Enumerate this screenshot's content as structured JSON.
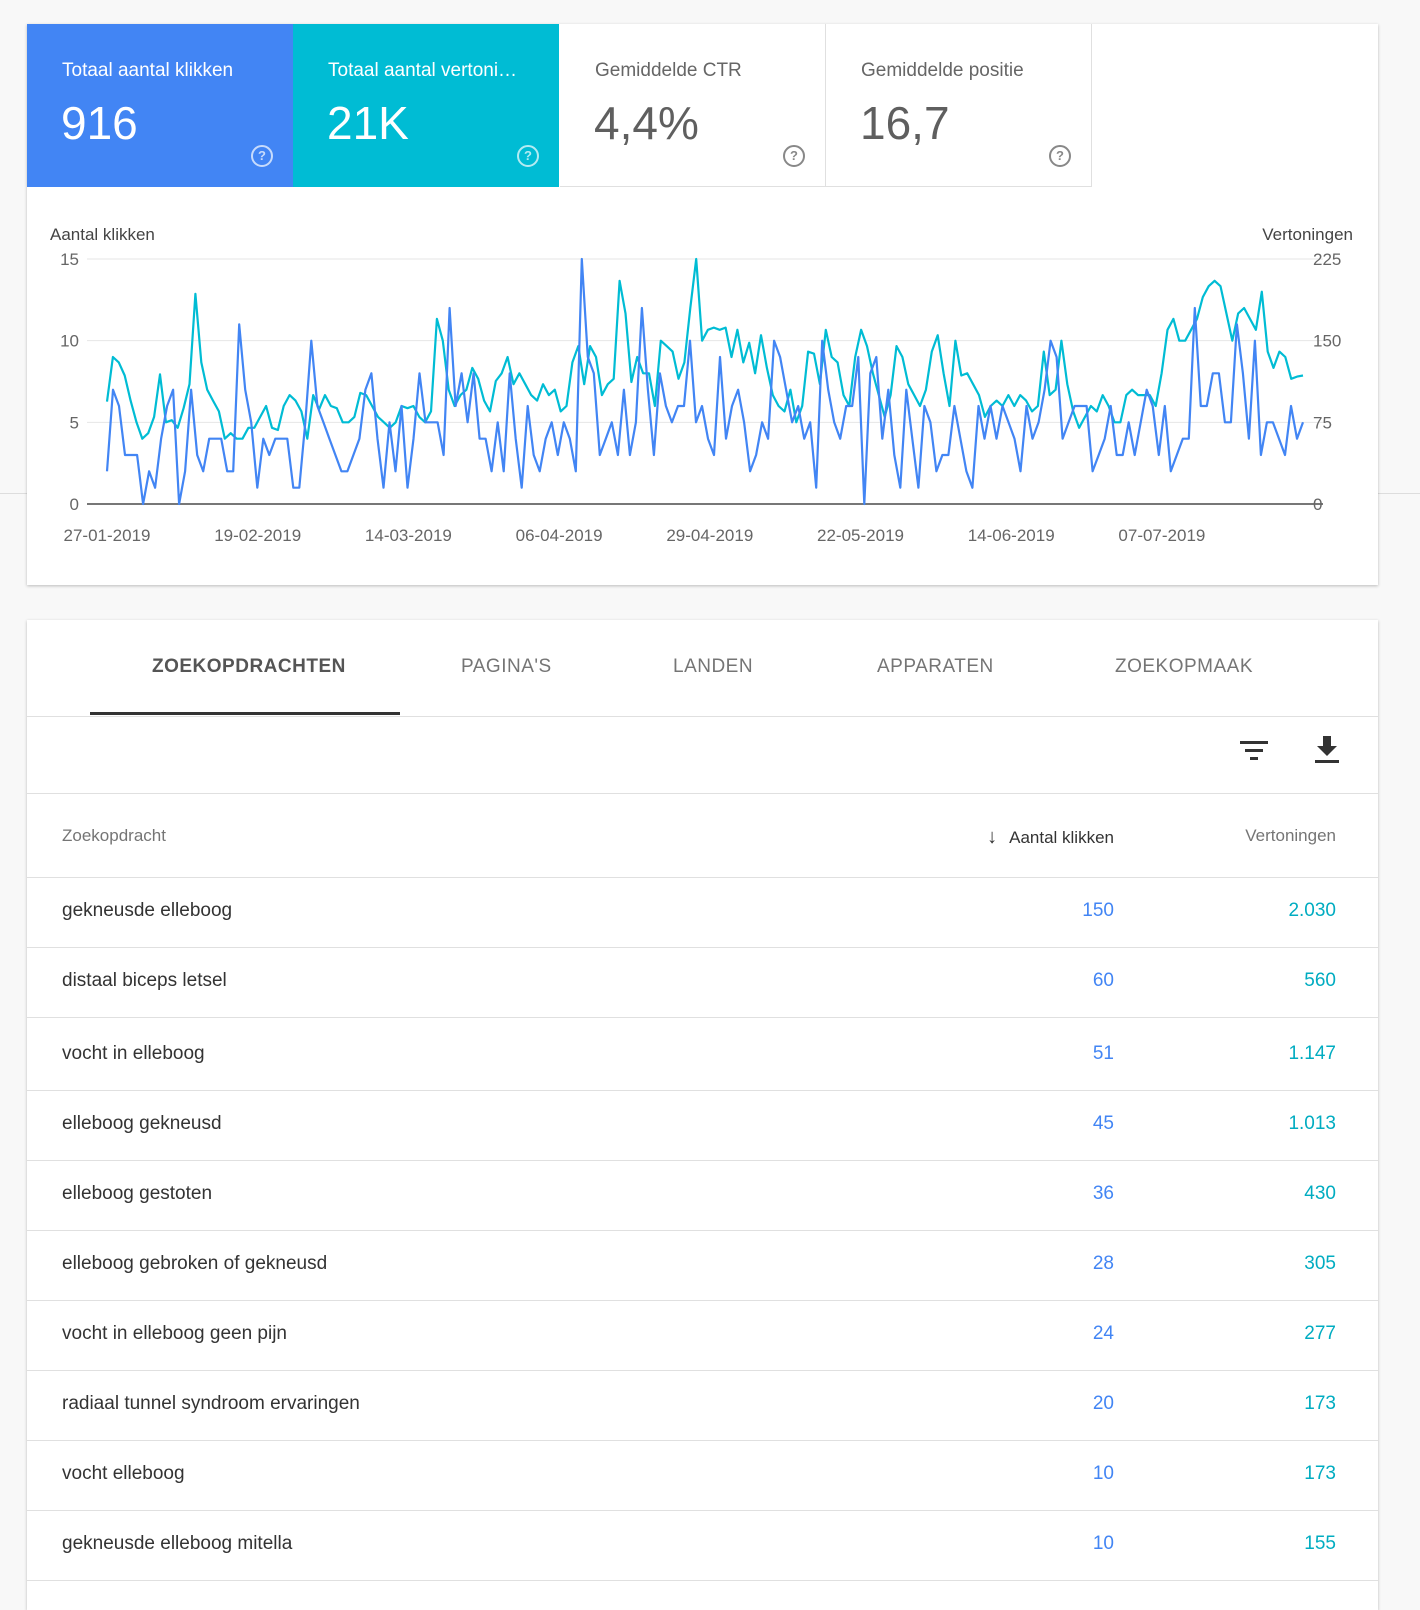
{
  "metrics": [
    {
      "label": "Totaal aantal klikken",
      "value": "916"
    },
    {
      "label": "Totaal aantal vertoni…",
      "value": "21K"
    },
    {
      "label": "Gemiddelde CTR",
      "value": "4,4%"
    },
    {
      "label": "Gemiddelde positie",
      "value": "16,7"
    }
  ],
  "help_glyph": "?",
  "chart_data": {
    "type": "line",
    "left_axis_title": "Aantal klikken",
    "right_axis_title": "Vertoningen",
    "left_ticks": [
      "0",
      "5",
      "10",
      "15"
    ],
    "right_ticks": [
      "0",
      "75",
      "150",
      "225"
    ],
    "left_ylim": [
      0,
      15
    ],
    "right_ylim": [
      0,
      225
    ],
    "x_tick_labels": [
      "27-01-2019",
      "19-02-2019",
      "14-03-2019",
      "06-04-2019",
      "29-04-2019",
      "22-05-2019",
      "14-06-2019",
      "07-07-2019"
    ],
    "colors": {
      "clicks": "#4285f4",
      "impressions": "#00bcd4"
    },
    "series": [
      {
        "axis": "left",
        "values": [
          2,
          7,
          6,
          3,
          3,
          3,
          0,
          2,
          1,
          4,
          6,
          7,
          0,
          2,
          7,
          3,
          2,
          4,
          4,
          4,
          2,
          2,
          11,
          7,
          5,
          1,
          4,
          3,
          4,
          4,
          4,
          1,
          1,
          5,
          10,
          6,
          5,
          4,
          3,
          2,
          2,
          3,
          4,
          7,
          8,
          4,
          1,
          5,
          2,
          6,
          1,
          4,
          8,
          5,
          5,
          5,
          3,
          12,
          6,
          8,
          5,
          8,
          4,
          4,
          2,
          5,
          2,
          8,
          4,
          1,
          6,
          3,
          2,
          4,
          5,
          3,
          5,
          4,
          2,
          15,
          9,
          8,
          3,
          4,
          5,
          3,
          7,
          3,
          5,
          12,
          7,
          3,
          8,
          6,
          5,
          6,
          6,
          10,
          5,
          6,
          4,
          3,
          9,
          4,
          6,
          7,
          5,
          2,
          3,
          5,
          4,
          10,
          9,
          7,
          5,
          6,
          4,
          5,
          1,
          10,
          7,
          5,
          4,
          6,
          6,
          9,
          0,
          8,
          9,
          4,
          7,
          3,
          1,
          7,
          4,
          1,
          6,
          5,
          2,
          3,
          3,
          6,
          4,
          2,
          1,
          6,
          4,
          6,
          4,
          6,
          5,
          4,
          2,
          6,
          4,
          5,
          7,
          10,
          9,
          4,
          5,
          6,
          6,
          6,
          2,
          3,
          4,
          6,
          3,
          3,
          5,
          3,
          5,
          7,
          6,
          3,
          6,
          2,
          3,
          4,
          4,
          12,
          6,
          6,
          8,
          8,
          5,
          5,
          11,
          8,
          4,
          10,
          3,
          5,
          5,
          4,
          3,
          6,
          4,
          5
        ],
        "note": ""
      },
      {
        "axis": "right",
        "values": [
          94,
          135,
          130,
          118,
          95,
          75,
          60,
          65,
          80,
          119,
          75,
          77,
          70,
          88,
          110,
          193,
          130,
          105,
          95,
          85,
          60,
          65,
          60,
          60,
          70,
          70,
          80,
          90,
          70,
          68,
          90,
          100,
          95,
          85,
          60,
          100,
          87,
          100,
          90,
          88,
          75,
          75,
          80,
          102,
          100,
          90,
          80,
          75,
          70,
          75,
          90,
          88,
          90,
          80,
          75,
          85,
          170,
          150,
          105,
          90,
          100,
          105,
          125,
          115,
          95,
          85,
          113,
          120,
          135,
          110,
          120,
          110,
          100,
          95,
          110,
          100,
          105,
          85,
          90,
          130,
          145,
          110,
          145,
          135,
          100,
          110,
          115,
          205,
          175,
          112,
          135,
          120,
          120,
          90,
          150,
          145,
          140,
          115,
          130,
          180,
          225,
          150,
          160,
          162,
          160,
          162,
          135,
          160,
          130,
          148,
          120,
          155,
          125,
          100,
          90,
          85,
          105,
          75,
          90,
          140,
          138,
          110,
          160,
          135,
          130,
          100,
          90,
          135,
          160,
          145,
          120,
          100,
          80,
          100,
          145,
          135,
          110,
          100,
          90,
          105,
          140,
          155,
          120,
          90,
          150,
          118,
          120,
          110,
          100,
          80,
          90,
          95,
          90,
          100,
          90,
          100,
          95,
          85,
          90,
          140,
          100,
          105,
          150,
          110,
          85,
          70,
          80,
          90,
          85,
          100,
          90,
          75,
          75,
          100,
          105,
          100,
          100,
          100,
          90,
          120,
          160,
          170,
          150,
          150,
          160,
          170,
          190,
          200,
          205,
          200,
          175,
          150,
          175,
          180,
          170,
          160,
          195,
          140,
          125,
          140,
          135,
          115,
          117,
          118
        ]
      }
    ]
  },
  "tabs": [
    "ZOEKOPDRACHTEN",
    "PAGINA'S",
    "LANDEN",
    "APPARATEN",
    "ZOEKOPMAAK"
  ],
  "table": {
    "headers": {
      "query": "Zoekopdracht",
      "sort_arrow": "↓",
      "clicks": "Aantal klikken",
      "impressions": "Vertoningen"
    },
    "rows": [
      {
        "query": "gekneusde elleboog",
        "clicks": "150",
        "impressions": "2.030"
      },
      {
        "query": "distaal biceps letsel",
        "clicks": "60",
        "impressions": "560"
      },
      {
        "query": "vocht in elleboog",
        "clicks": "51",
        "impressions": "1.147"
      },
      {
        "query": "elleboog gekneusd",
        "clicks": "45",
        "impressions": "1.013"
      },
      {
        "query": "elleboog gestoten",
        "clicks": "36",
        "impressions": "430"
      },
      {
        "query": "elleboog gebroken of gekneusd",
        "clicks": "28",
        "impressions": "305"
      },
      {
        "query": "vocht in elleboog geen pijn",
        "clicks": "24",
        "impressions": "277"
      },
      {
        "query": "radiaal tunnel syndroom ervaringen",
        "clicks": "20",
        "impressions": "173"
      },
      {
        "query": "vocht elleboog",
        "clicks": "10",
        "impressions": "173"
      },
      {
        "query": "gekneusde elleboog mitella",
        "clicks": "10",
        "impressions": "155"
      }
    ]
  }
}
